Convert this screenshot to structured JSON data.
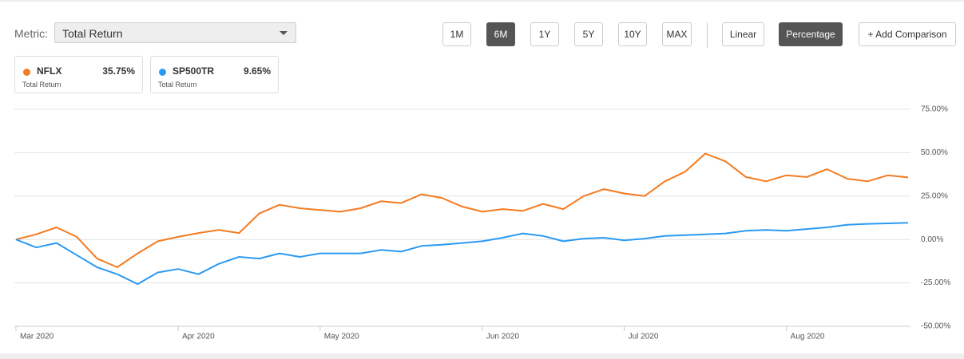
{
  "controls": {
    "metric_label": "Metric:",
    "metric_value": "Total Return",
    "ranges": [
      {
        "label": "1M",
        "active": false
      },
      {
        "label": "6M",
        "active": true
      },
      {
        "label": "1Y",
        "active": false
      },
      {
        "label": "5Y",
        "active": false
      },
      {
        "label": "10Y",
        "active": false
      },
      {
        "label": "MAX",
        "active": false
      }
    ],
    "scales": [
      {
        "label": "Linear",
        "active": false
      },
      {
        "label": "Percentage",
        "active": true
      }
    ],
    "add_comparison": "+ Add Comparison"
  },
  "chart_data": {
    "type": "line",
    "categories": [
      "Mar 2020",
      null,
      null,
      null,
      null,
      null,
      null,
      null,
      "Apr 2020",
      null,
      null,
      null,
      null,
      null,
      null,
      "May 2020",
      null,
      null,
      null,
      null,
      null,
      null,
      null,
      "Jun 2020",
      null,
      null,
      null,
      null,
      null,
      null,
      "Jul 2020",
      null,
      null,
      null,
      null,
      null,
      null,
      null,
      "Aug 2020",
      null,
      null,
      null,
      null,
      null,
      null
    ],
    "series": [
      {
        "name": "NFLX",
        "color": "#f47b20",
        "summary": {
          "value": 35.75,
          "label": "35.75%",
          "caption": "Total Return"
        },
        "values": [
          0,
          3,
          7,
          1.5,
          -11,
          -16,
          -8,
          -1,
          1.5,
          3.7,
          5.5,
          3.7,
          15,
          20,
          18,
          17,
          16,
          18,
          22,
          21,
          26,
          24,
          19,
          16,
          17.5,
          16.5,
          20.5,
          17.5,
          25,
          29,
          26.5,
          25,
          33.5,
          39,
          49.5,
          45,
          36,
          33.5,
          37,
          36,
          40.5,
          35,
          33.5,
          37,
          35.75
        ]
      },
      {
        "name": "SP500TR",
        "color": "#2b9af3",
        "summary": {
          "value": 9.65,
          "label": "9.65%",
          "caption": "Total Return"
        },
        "values": [
          0,
          -4.6,
          -2,
          -9,
          -16,
          -20,
          -25.7,
          -19,
          -17,
          -20,
          -14,
          -10,
          -11,
          -8,
          -10,
          -8,
          -8,
          -8,
          -6,
          -7,
          -3.7,
          -3,
          -2,
          -1,
          1,
          3.5,
          2,
          -1,
          0.5,
          1,
          -0.5,
          0.5,
          2,
          2.5,
          3,
          3.5,
          5,
          5.5,
          5,
          6,
          7,
          8.5,
          9,
          9.3,
          9.65
        ]
      }
    ],
    "ylim": [
      -50,
      75
    ],
    "yticks": [
      {
        "value": -50,
        "label": "-50.00%"
      },
      {
        "value": -25,
        "label": "-25.00%"
      },
      {
        "value": 0,
        "label": "0.00%"
      },
      {
        "value": 25,
        "label": "25.00%"
      },
      {
        "value": 50,
        "label": "50.00%"
      },
      {
        "value": 75,
        "label": "75.00%"
      }
    ],
    "grid": true
  }
}
